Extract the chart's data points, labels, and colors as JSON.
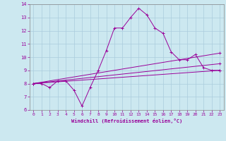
{
  "title": "",
  "xlabel": "Windchill (Refroidissement éolien,°C)",
  "ylabel": "",
  "background_color": "#cce8f0",
  "grid_color": "#aaccdd",
  "line_color": "#990099",
  "xlim": [
    -0.5,
    23.5
  ],
  "ylim": [
    6,
    14
  ],
  "xticks": [
    0,
    1,
    2,
    3,
    4,
    5,
    6,
    7,
    8,
    9,
    10,
    11,
    12,
    13,
    14,
    15,
    16,
    17,
    18,
    19,
    20,
    21,
    22,
    23
  ],
  "yticks": [
    6,
    7,
    8,
    9,
    10,
    11,
    12,
    13,
    14
  ],
  "series1_x": [
    0,
    1,
    2,
    3,
    4,
    5,
    6,
    7,
    8,
    9,
    10,
    11,
    12,
    13,
    14,
    15,
    16,
    17,
    18,
    19,
    20,
    21,
    22,
    23
  ],
  "series1_y": [
    8.0,
    8.0,
    7.7,
    8.2,
    8.2,
    7.5,
    6.3,
    7.7,
    9.0,
    10.5,
    12.2,
    12.2,
    13.0,
    13.7,
    13.2,
    12.2,
    11.8,
    10.4,
    9.8,
    9.8,
    10.2,
    9.2,
    9.0,
    9.0
  ],
  "series2_x": [
    0,
    23
  ],
  "series2_y": [
    8.0,
    9.0
  ],
  "series3_x": [
    0,
    23
  ],
  "series3_y": [
    8.0,
    9.5
  ],
  "series4_x": [
    0,
    23
  ],
  "series4_y": [
    8.0,
    10.3
  ],
  "marker": "+"
}
